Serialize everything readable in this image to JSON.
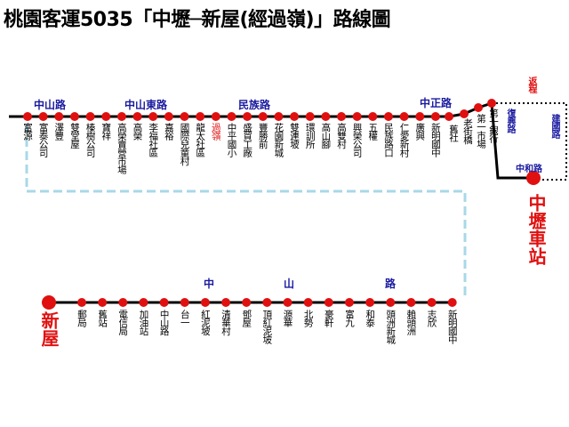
{
  "title": "桃園客運5035「中壢─新屋(經過嶺)」路線圖",
  "terminals": {
    "start": "中壢車站",
    "end": "新屋"
  },
  "roads_top": [
    "中山路",
    "中山東路",
    "民族路",
    "中正路"
  ],
  "roads_return": {
    "label": "返程",
    "roads": [
      "復興路",
      "建國路",
      "中和路"
    ]
  },
  "roads_bottom": [
    "中",
    "山",
    "路"
  ],
  "stops_top": [
    "富源",
    "富泰公司",
    "澤豐",
    "雙堂屋",
    "榛樹公司",
    "寶祥",
    "高榮賣營市場",
    "高榮",
    "李福社區",
    "嘉裕",
    "國際兒童村",
    "龍太社區",
    "過嶺",
    "中平國小",
    "盛貿工廠",
    "豐勝前",
    "花園新城",
    "雙連坡",
    "環訓所",
    "高山腳",
    "高雙村",
    "興榮公司",
    "五權",
    "民族路口",
    "仁愛新村",
    "廣興",
    "新明國中",
    "舊社",
    "老街橋",
    "第一市場",
    "第一銀行"
  ],
  "stops_bottom": [
    "郵局",
    "舊站",
    "電信局",
    "加油站",
    "中山路",
    "台一",
    "紅泥坡",
    "清華村",
    "鄧屋",
    "頂紅泥坡",
    "源華",
    "北勢",
    "豪軒",
    "富九",
    "和泰",
    "頭洲新城",
    "賴頭洲",
    "志欣",
    "新明國中"
  ]
}
